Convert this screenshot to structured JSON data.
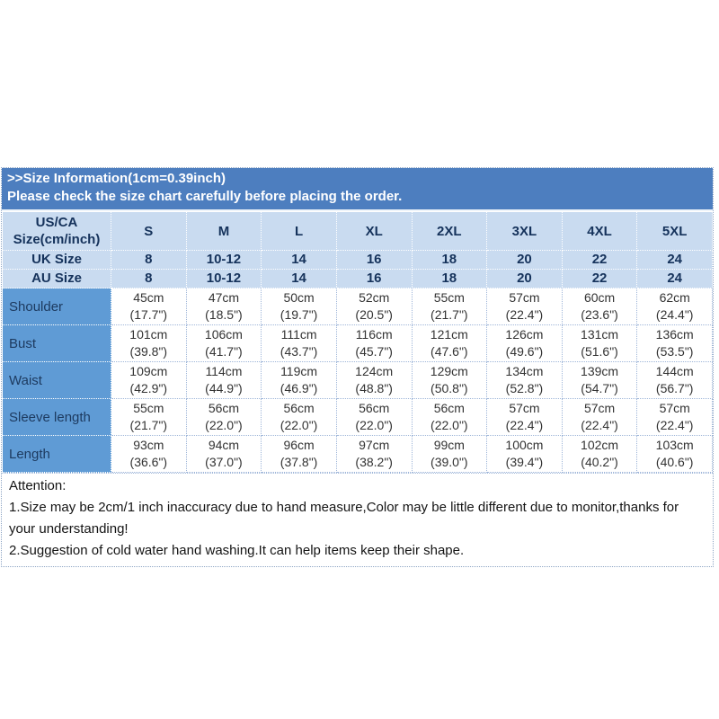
{
  "banner": {
    "line1": ">>Size Information(1cm=0.39inch)",
    "line2": "Please check the size chart carefully before placing the order."
  },
  "table": {
    "corner": {
      "line1": "US/CA",
      "line2": "Size(cm/inch)"
    },
    "columns": [
      "S",
      "M",
      "L",
      "XL",
      "2XL",
      "3XL",
      "4XL",
      "5XL"
    ],
    "uk": {
      "label": "UK Size",
      "values": [
        "8",
        "10-12",
        "14",
        "16",
        "18",
        "20",
        "22",
        "24"
      ]
    },
    "au": {
      "label": "AU Size",
      "values": [
        "8",
        "10-12",
        "14",
        "16",
        "18",
        "20",
        "22",
        "24"
      ]
    },
    "measurements": [
      {
        "label": "Shoulder",
        "values": [
          {
            "cm": "45cm",
            "inch": "(17.7\")"
          },
          {
            "cm": "47cm",
            "inch": "(18.5\")"
          },
          {
            "cm": "50cm",
            "inch": "(19.7\")"
          },
          {
            "cm": "52cm",
            "inch": "(20.5\")"
          },
          {
            "cm": "55cm",
            "inch": "(21.7\")"
          },
          {
            "cm": "57cm",
            "inch": "(22.4\")"
          },
          {
            "cm": "60cm",
            "inch": "(23.6\")"
          },
          {
            "cm": "62cm",
            "inch": "(24.4\")"
          }
        ]
      },
      {
        "label": "Bust",
        "values": [
          {
            "cm": "101cm",
            "inch": "(39.8\")"
          },
          {
            "cm": "106cm",
            "inch": "(41.7\")"
          },
          {
            "cm": "111cm",
            "inch": "(43.7\")"
          },
          {
            "cm": "116cm",
            "inch": "(45.7\")"
          },
          {
            "cm": "121cm",
            "inch": "(47.6\")"
          },
          {
            "cm": "126cm",
            "inch": "(49.6\")"
          },
          {
            "cm": "131cm",
            "inch": "(51.6\")"
          },
          {
            "cm": "136cm",
            "inch": "(53.5\")"
          }
        ]
      },
      {
        "label": "Waist",
        "values": [
          {
            "cm": "109cm",
            "inch": "(42.9\")"
          },
          {
            "cm": "114cm",
            "inch": "(44.9\")"
          },
          {
            "cm": "119cm",
            "inch": "(46.9\")"
          },
          {
            "cm": "124cm",
            "inch": "(48.8\")"
          },
          {
            "cm": "129cm",
            "inch": "(50.8\")"
          },
          {
            "cm": "134cm",
            "inch": "(52.8\")"
          },
          {
            "cm": "139cm",
            "inch": "(54.7\")"
          },
          {
            "cm": "144cm",
            "inch": "(56.7\")"
          }
        ]
      },
      {
        "label": "Sleeve length",
        "values": [
          {
            "cm": "55cm",
            "inch": "(21.7\")"
          },
          {
            "cm": "56cm",
            "inch": "(22.0\")"
          },
          {
            "cm": "56cm",
            "inch": "(22.0\")"
          },
          {
            "cm": "56cm",
            "inch": "(22.0\")"
          },
          {
            "cm": "56cm",
            "inch": "(22.0\")"
          },
          {
            "cm": "57cm",
            "inch": "(22.4\")"
          },
          {
            "cm": "57cm",
            "inch": "(22.4\")"
          },
          {
            "cm": "57cm",
            "inch": "(22.4\")"
          }
        ]
      },
      {
        "label": "Length",
        "values": [
          {
            "cm": "93cm",
            "inch": "(36.6\")"
          },
          {
            "cm": "94cm",
            "inch": "(37.0\")"
          },
          {
            "cm": "96cm",
            "inch": "(37.8\")"
          },
          {
            "cm": "97cm",
            "inch": "(38.2\")"
          },
          {
            "cm": "99cm",
            "inch": "(39.0\")"
          },
          {
            "cm": "100cm",
            "inch": "(39.4\")"
          },
          {
            "cm": "102cm",
            "inch": "(40.2\")"
          },
          {
            "cm": "103cm",
            "inch": "(40.6\")"
          }
        ]
      }
    ]
  },
  "attention": {
    "title": "Attention:",
    "line1": "1.Size may be 2cm/1 inch inaccuracy due to hand measure,Color may be little different due to monitor,thanks for your understanding!",
    "line2": "2.Suggestion of cold water hand washing.It can help items keep their shape."
  },
  "colors": {
    "banner_bg": "#4d7ebf",
    "header_bg": "#c9dbf0",
    "label_bg": "#5f9bd5",
    "header_text": "#15325b",
    "body_text": "#333333"
  }
}
